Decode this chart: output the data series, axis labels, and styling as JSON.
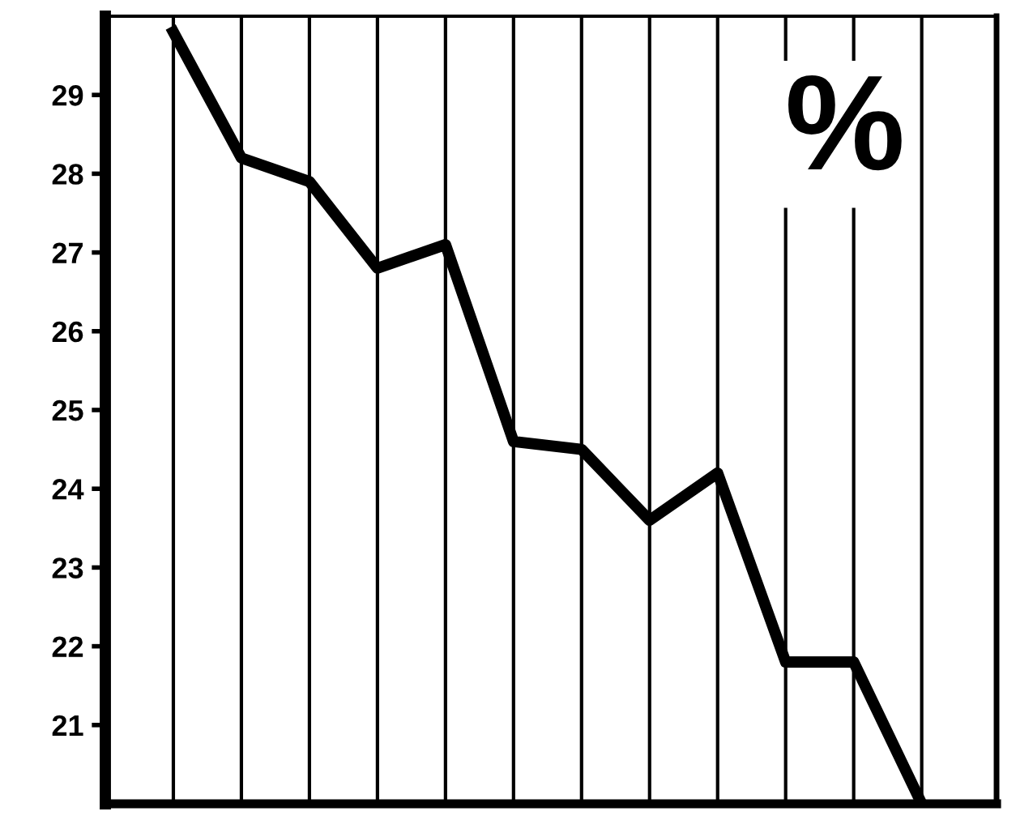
{
  "chart_data": {
    "type": "line",
    "categories": [
      null,
      null,
      null,
      null,
      null,
      null,
      null,
      null,
      null,
      null,
      null,
      null
    ],
    "series": [
      {
        "color": "#000000",
        "values": [
          29.8,
          28.2,
          27.9,
          26.8,
          27.1,
          24.6,
          24.5,
          23.6,
          24.2,
          21.8,
          21.8,
          20.0
        ]
      }
    ],
    "ylim": [
      20,
      30
    ],
    "yticks": [
      21,
      22,
      23,
      24,
      25,
      26,
      27,
      28,
      29
    ],
    "grid": "x",
    "marker": "none",
    "line_style": "solid",
    "legend": false,
    "annotations": [
      "%"
    ]
  }
}
